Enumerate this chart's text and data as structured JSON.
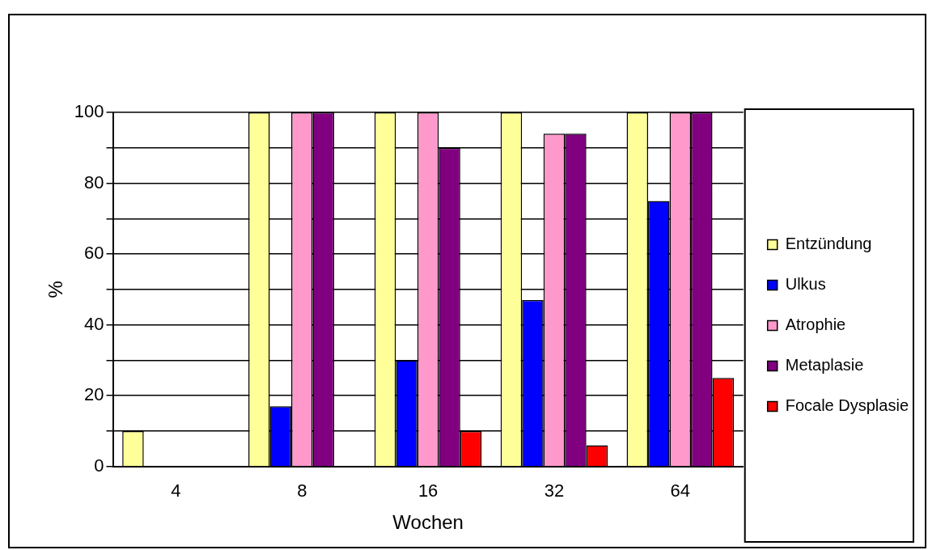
{
  "chart_data": {
    "type": "bar",
    "xlabel": "Wochen",
    "ylabel": "%",
    "categories": [
      "4",
      "8",
      "16",
      "32",
      "64"
    ],
    "series": [
      {
        "name": "Entzündung",
        "color": "#ffff99",
        "values": [
          10,
          100,
          100,
          100,
          100
        ]
      },
      {
        "name": "Ulkus",
        "color": "#0000ff",
        "values": [
          0,
          17,
          30,
          47,
          75
        ]
      },
      {
        "name": "Atrophie",
        "color": "#ff99cc",
        "values": [
          0,
          100,
          100,
          94,
          100
        ]
      },
      {
        "name": "Metaplasie",
        "color": "#800080",
        "values": [
          0,
          100,
          90,
          94,
          100
        ]
      },
      {
        "name": "Focale Dysplasie",
        "color": "#ff0000",
        "values": [
          0,
          0,
          10,
          6,
          25
        ]
      }
    ],
    "ylim": [
      0,
      100
    ],
    "yticks": [
      0,
      {
        "value": 10,
        "label": null
      },
      20,
      {
        "value": 30,
        "label": null
      },
      40,
      {
        "value": 50,
        "label": null
      },
      60,
      {
        "value": 70,
        "label": null
      },
      80,
      {
        "value": 90,
        "label": null
      },
      100
    ],
    "grid": "y",
    "legend": "right"
  }
}
